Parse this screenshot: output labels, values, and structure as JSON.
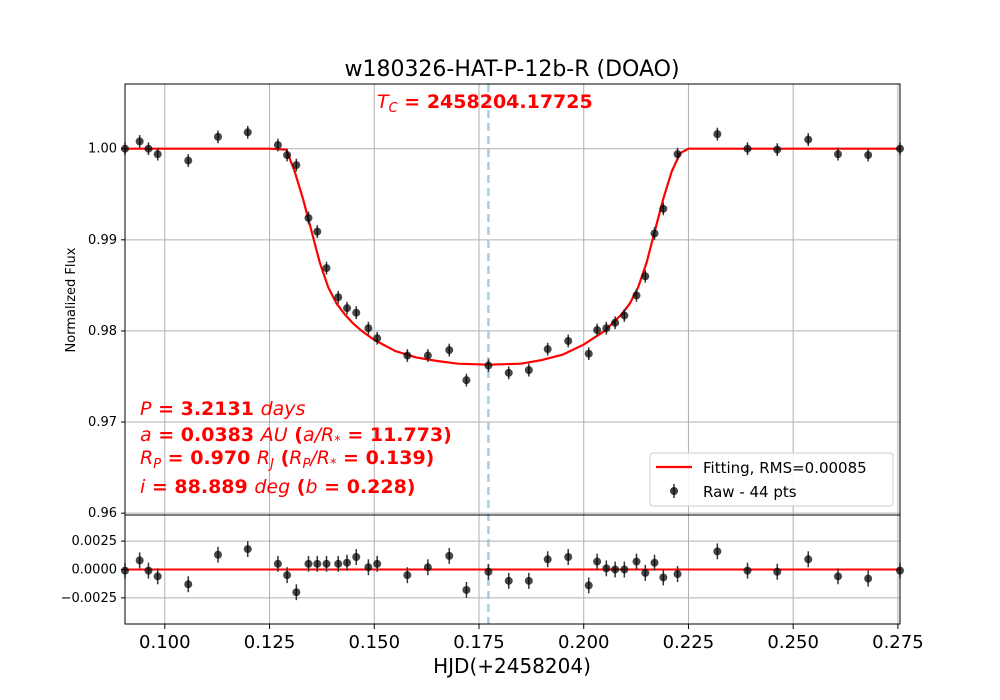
{
  "chart_data": {
    "type": "scatter",
    "title": "w180326-HAT-P-12b-R (DOAO)",
    "xlabel": "HJD(+2458204)",
    "ylabel": "Normalized Flux",
    "xlim": [
      0.0905,
      0.2755
    ],
    "ylim_main": [
      0.9598,
      1.0071
    ],
    "ylim_residual": [
      -0.0048,
      0.0048
    ],
    "xticks": [
      0.1,
      0.125,
      0.15,
      0.175,
      0.2,
      0.225,
      0.25,
      0.275
    ],
    "xtick_labels": [
      "0.100",
      "0.125",
      "0.150",
      "0.175",
      "0.200",
      "0.225",
      "0.250",
      "0.275"
    ],
    "yticks_main": [
      0.96,
      0.97,
      0.98,
      0.99,
      1.0
    ],
    "ytick_labels_main": [
      "0.96",
      "0.97",
      "0.98",
      "0.99",
      "1.00"
    ],
    "yticks_residual": [
      -0.0025,
      0.0,
      0.0025
    ],
    "ytick_labels_residual": [
      "−0.0025",
      "0.0000",
      "0.0025"
    ],
    "grid": true,
    "legend_position": "lower-right",
    "colors": {
      "fit": "#ff0000",
      "points": "#000000",
      "tc_line": "#a6cde6",
      "annotation": "#ff0000",
      "grid": "#b0b0b0"
    },
    "tc_x": 0.17725,
    "annotations": {
      "tc_label": "T",
      "tc_label_sub": "C",
      "tc_value": " = 2458204.17725",
      "period": {
        "sym": "P",
        "value": " = 3.2131 ",
        "unit": "days"
      },
      "semimajor": {
        "sym": "a",
        "value": " = 0.0383 ",
        "unit": "AU",
        "paren_open": " (",
        "ratio_sym": "a/R",
        "ratio_sub": "*",
        "ratio_value": " = 11.773)"
      },
      "radius": {
        "sym": "R",
        "sub": "P",
        "value": " = 0.970 ",
        "unit": "R",
        "unit_sub": "J",
        "paren_open": " (",
        "ratio_sym": "R",
        "ratio_sub1": "P",
        "ratio_slash": "/R",
        "ratio_sub2": "*",
        "ratio_value": " = 0.139)"
      },
      "inclination": {
        "sym": "i",
        "value": " = 88.889 ",
        "unit": "deg",
        "paren_open": " (",
        "b_sym": "b",
        "b_value": " = 0.228)"
      }
    },
    "series": [
      {
        "name": "Fitting, RMS=0.00085",
        "kind": "line",
        "x": [
          0.0905,
          0.125,
          0.129,
          0.131,
          0.133,
          0.135,
          0.137,
          0.139,
          0.141,
          0.143,
          0.145,
          0.147,
          0.15,
          0.155,
          0.16,
          0.165,
          0.17,
          0.17725,
          0.185,
          0.19,
          0.195,
          0.2,
          0.205,
          0.209,
          0.211,
          0.213,
          0.215,
          0.217,
          0.219,
          0.221,
          0.223,
          0.225,
          0.2755
        ],
        "y": [
          1.0,
          1.0,
          0.9999,
          0.9975,
          0.9945,
          0.991,
          0.9875,
          0.9848,
          0.983,
          0.9818,
          0.9808,
          0.98,
          0.979,
          0.9778,
          0.9771,
          0.9767,
          0.9764,
          0.9763,
          0.9764,
          0.9768,
          0.9774,
          0.9785,
          0.98,
          0.9818,
          0.983,
          0.9848,
          0.9875,
          0.991,
          0.9945,
          0.9975,
          0.9995,
          1.0,
          1.0
        ]
      },
      {
        "name": "Raw - 44 pts",
        "kind": "points",
        "x": [
          0.0905,
          0.094,
          0.0961,
          0.0983,
          0.1056,
          0.1127,
          0.1198,
          0.127,
          0.1292,
          0.1314,
          0.1343,
          0.1364,
          0.1386,
          0.1414,
          0.1435,
          0.1457,
          0.1486,
          0.1507,
          0.1579,
          0.1628,
          0.1679,
          0.172,
          0.17725,
          0.1821,
          0.1869,
          0.1914,
          0.1963,
          0.2012,
          0.2032,
          0.2054,
          0.2075,
          0.2097,
          0.2126,
          0.2147,
          0.2169,
          0.219,
          0.2224,
          0.2319,
          0.2391,
          0.2462,
          0.2536,
          0.2607,
          0.2679,
          0.2755
        ],
        "y": [
          1.0,
          1.0008,
          1.0,
          0.9994,
          0.9987,
          1.0013,
          1.0018,
          1.0004,
          0.9993,
          0.9982,
          0.9924,
          0.9909,
          0.9869,
          0.9837,
          0.9825,
          0.982,
          0.9803,
          0.9792,
          0.9773,
          0.9773,
          0.9779,
          0.9746,
          0.9762,
          0.9754,
          0.9757,
          0.978,
          0.9789,
          0.9775,
          0.9801,
          0.9803,
          0.9809,
          0.9817,
          0.9839,
          0.986,
          0.9907,
          0.9934,
          0.9994,
          1.0016,
          1.0,
          0.9999,
          1.001,
          0.9994,
          0.9993,
          1.0
        ],
        "residuals": [
          -0.0001,
          0.0008,
          -0.0001,
          -0.0006,
          -0.0013,
          0.0013,
          0.0018,
          0.0005,
          -0.0005,
          -0.002,
          0.0005,
          0.0005,
          0.0005,
          0.0005,
          0.0006,
          0.0011,
          0.0002,
          0.0005,
          -0.0005,
          0.0002,
          0.0012,
          -0.0018,
          -0.0002,
          -0.001,
          -0.001,
          0.0009,
          0.0011,
          -0.0014,
          0.0007,
          0.0001,
          0.0,
          0.0,
          0.0007,
          -0.0003,
          0.0006,
          -0.0007,
          -0.0004,
          0.0016,
          -0.0001,
          -0.0002,
          0.0009,
          -0.0006,
          -0.0008,
          -0.0001
        ],
        "yerr": 0.0007
      }
    ]
  }
}
